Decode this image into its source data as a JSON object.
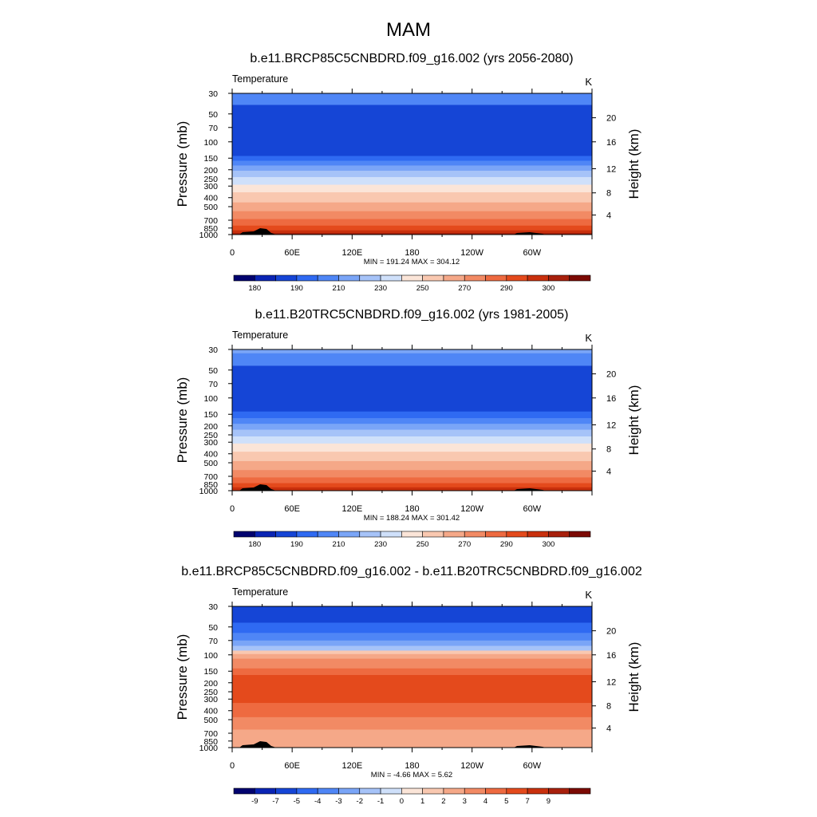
{
  "figure_title": "MAM",
  "chart_data": [
    {
      "type": "heatmap",
      "title": "b.e11.BRCP85C5CNBDRD.f09_g16.002 (yrs 2056-2080)",
      "variable_label": "Temperature",
      "units_label": "K",
      "ylabel": "Pressure (mb)",
      "ylabel_right": "Height (km)",
      "xlabel": "",
      "x_ticks": [
        "0",
        "60E",
        "120E",
        "180",
        "120W",
        "60W"
      ],
      "y_ticks": [
        "30",
        "50",
        "70",
        "100",
        "150",
        "200",
        "250",
        "300",
        "400",
        "500",
        "700",
        "850",
        "1000"
      ],
      "y_ticks_right": [
        "20",
        "16",
        "12",
        "8",
        "4"
      ],
      "stats_text": "MIN = 191.24  MAX = 304.12",
      "min": 191.24,
      "max": 304.12,
      "y_scale": "log",
      "ylim": [
        1000,
        30
      ],
      "colorbar_labels": [
        "180",
        "190",
        "210",
        "230",
        "250",
        "270",
        "290",
        "300"
      ],
      "colorbar_colors": [
        "#02036f",
        "#0a24b4",
        "#1545d6",
        "#2f6af2",
        "#4f86f6",
        "#7aa5f7",
        "#a6c3f8",
        "#cfe0fa",
        "#fbe5d8",
        "#f9c8b0",
        "#f5a888",
        "#f28a64",
        "#ee6a40",
        "#e44a1c",
        "#c9300d",
        "#a8200c",
        "#7c0a04"
      ],
      "level_bands": [
        {
          "p_top": 30,
          "p_bottom": 40,
          "color": "#4f86f6"
        },
        {
          "p_top": 40,
          "p_bottom": 142,
          "color": "#1545d6"
        },
        {
          "p_top": 142,
          "p_bottom": 160,
          "color": "#2f6af2"
        },
        {
          "p_top": 160,
          "p_bottom": 180,
          "color": "#4f86f6"
        },
        {
          "p_top": 180,
          "p_bottom": 205,
          "color": "#7aa5f7"
        },
        {
          "p_top": 205,
          "p_bottom": 240,
          "color": "#a6c3f8"
        },
        {
          "p_top": 240,
          "p_bottom": 290,
          "color": "#cfe0fa"
        },
        {
          "p_top": 290,
          "p_bottom": 350,
          "color": "#fbe5d8"
        },
        {
          "p_top": 350,
          "p_bottom": 450,
          "color": "#f9c8b0"
        },
        {
          "p_top": 450,
          "p_bottom": 560,
          "color": "#f5a888"
        },
        {
          "p_top": 560,
          "p_bottom": 680,
          "color": "#f28a64"
        },
        {
          "p_top": 680,
          "p_bottom": 800,
          "color": "#ee6a40"
        },
        {
          "p_top": 800,
          "p_bottom": 900,
          "color": "#e44a1c"
        },
        {
          "p_top": 900,
          "p_bottom": 960,
          "color": "#c9300d"
        },
        {
          "p_top": 960,
          "p_bottom": 1000,
          "color": "#a8200c"
        }
      ]
    },
    {
      "type": "heatmap",
      "title": "b.e11.B20TRC5CNBDRD.f09_g16.002 (yrs 1981-2005)",
      "variable_label": "Temperature",
      "units_label": "K",
      "ylabel": "Pressure (mb)",
      "ylabel_right": "Height (km)",
      "xlabel": "",
      "x_ticks": [
        "0",
        "60E",
        "120E",
        "180",
        "120W",
        "60W"
      ],
      "y_ticks": [
        "30",
        "50",
        "70",
        "100",
        "150",
        "200",
        "250",
        "300",
        "400",
        "500",
        "700",
        "850",
        "1000"
      ],
      "y_ticks_right": [
        "20",
        "16",
        "12",
        "8",
        "4"
      ],
      "stats_text": "MIN = 188.24  MAX = 301.42",
      "min": 188.24,
      "max": 301.42,
      "y_scale": "log",
      "ylim": [
        1000,
        30
      ],
      "colorbar_labels": [
        "180",
        "190",
        "210",
        "230",
        "250",
        "270",
        "290",
        "300"
      ],
      "colorbar_colors": [
        "#02036f",
        "#0a24b4",
        "#1545d6",
        "#2f6af2",
        "#4f86f6",
        "#7aa5f7",
        "#a6c3f8",
        "#cfe0fa",
        "#fbe5d8",
        "#f9c8b0",
        "#f5a888",
        "#f28a64",
        "#ee6a40",
        "#e44a1c",
        "#c9300d",
        "#a8200c",
        "#7c0a04"
      ],
      "level_bands": [
        {
          "p_top": 30,
          "p_bottom": 33,
          "color": "#7aa5f7"
        },
        {
          "p_top": 33,
          "p_bottom": 45,
          "color": "#4f86f6"
        },
        {
          "p_top": 45,
          "p_bottom": 140,
          "color": "#1545d6"
        },
        {
          "p_top": 140,
          "p_bottom": 165,
          "color": "#2f6af2"
        },
        {
          "p_top": 165,
          "p_bottom": 190,
          "color": "#4f86f6"
        },
        {
          "p_top": 190,
          "p_bottom": 220,
          "color": "#7aa5f7"
        },
        {
          "p_top": 220,
          "p_bottom": 260,
          "color": "#a6c3f8"
        },
        {
          "p_top": 260,
          "p_bottom": 310,
          "color": "#cfe0fa"
        },
        {
          "p_top": 310,
          "p_bottom": 380,
          "color": "#fbe5d8"
        },
        {
          "p_top": 380,
          "p_bottom": 480,
          "color": "#f9c8b0"
        },
        {
          "p_top": 480,
          "p_bottom": 600,
          "color": "#f5a888"
        },
        {
          "p_top": 600,
          "p_bottom": 720,
          "color": "#f28a64"
        },
        {
          "p_top": 720,
          "p_bottom": 830,
          "color": "#ee6a40"
        },
        {
          "p_top": 830,
          "p_bottom": 920,
          "color": "#e44a1c"
        },
        {
          "p_top": 920,
          "p_bottom": 1000,
          "color": "#c9300d"
        }
      ]
    },
    {
      "type": "heatmap",
      "title": "b.e11.BRCP85C5CNBDRD.f09_g16.002 - b.e11.B20TRC5CNBDRD.f09_g16.002",
      "variable_label": "Temperature",
      "units_label": "K",
      "ylabel": "Pressure (mb)",
      "ylabel_right": "Height (km)",
      "xlabel": "",
      "x_ticks": [
        "0",
        "60E",
        "120E",
        "180",
        "120W",
        "60W"
      ],
      "y_ticks": [
        "30",
        "50",
        "70",
        "100",
        "150",
        "200",
        "250",
        "300",
        "400",
        "500",
        "700",
        "850",
        "1000"
      ],
      "y_ticks_right": [
        "20",
        "16",
        "12",
        "8",
        "4"
      ],
      "stats_text": "MIN =  -4.66  MAX =   5.62",
      "min": -4.66,
      "max": 5.62,
      "y_scale": "log",
      "ylim": [
        1000,
        30
      ],
      "colorbar_labels": [
        "-9",
        "-7",
        "-5",
        "-4",
        "-3",
        "-2",
        "-1",
        "0",
        "1",
        "2",
        "3",
        "4",
        "5",
        "7",
        "9"
      ],
      "colorbar_colors": [
        "#02036f",
        "#0a24b4",
        "#1545d6",
        "#2f6af2",
        "#4f86f6",
        "#7aa5f7",
        "#a6c3f8",
        "#cfe0fa",
        "#fbe5d8",
        "#f9c8b0",
        "#f5a888",
        "#f28a64",
        "#ee6a40",
        "#e44a1c",
        "#c9300d",
        "#a8200c",
        "#7c0a04"
      ],
      "level_bands": [
        {
          "p_top": 30,
          "p_bottom": 45,
          "color": "#1545d6"
        },
        {
          "p_top": 45,
          "p_bottom": 58,
          "color": "#2f6af2"
        },
        {
          "p_top": 58,
          "p_bottom": 70,
          "color": "#4f86f6"
        },
        {
          "p_top": 70,
          "p_bottom": 80,
          "color": "#7aa5f7"
        },
        {
          "p_top": 80,
          "p_bottom": 90,
          "color": "#a6c3f8"
        },
        {
          "p_top": 90,
          "p_bottom": 98,
          "color": "#f9c8b0"
        },
        {
          "p_top": 98,
          "p_bottom": 110,
          "color": "#f5a888"
        },
        {
          "p_top": 110,
          "p_bottom": 140,
          "color": "#f28a64"
        },
        {
          "p_top": 140,
          "p_bottom": 165,
          "color": "#ee6a40"
        },
        {
          "p_top": 165,
          "p_bottom": 330,
          "color": "#e44a1c"
        },
        {
          "p_top": 330,
          "p_bottom": 470,
          "color": "#ee6a40"
        },
        {
          "p_top": 470,
          "p_bottom": 640,
          "color": "#f28a64"
        },
        {
          "p_top": 640,
          "p_bottom": 1000,
          "color": "#f5a888"
        }
      ]
    }
  ]
}
